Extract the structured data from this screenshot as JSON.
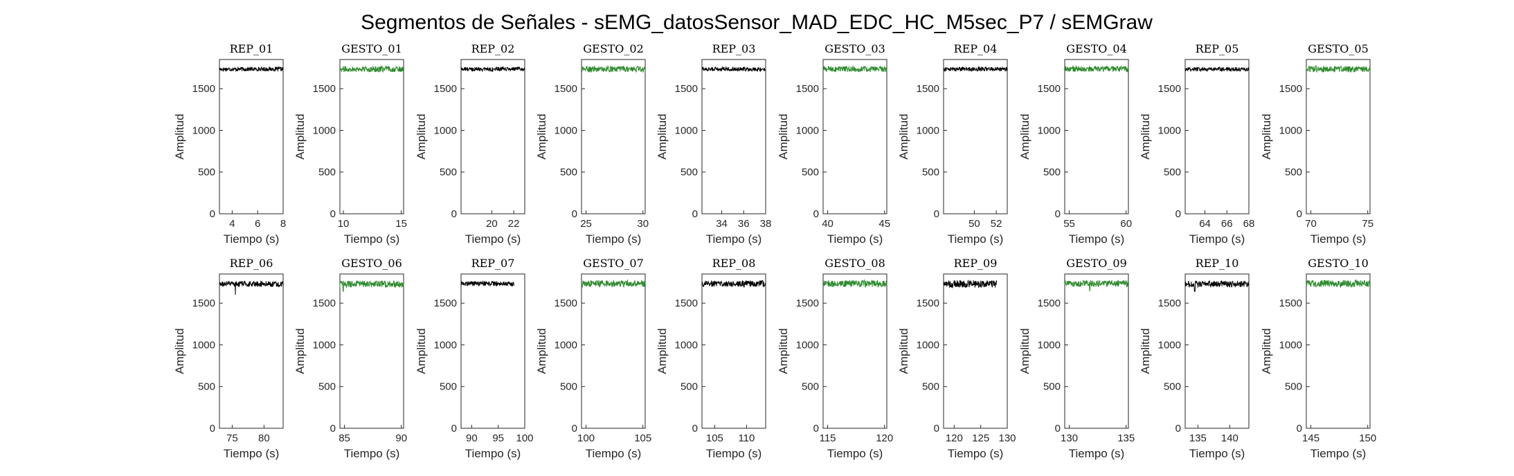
{
  "figure_title": "Segmentos de Señales - sEMG_datosSensor_MAD_EDC_HC_M5sec_P7 / sEMGraw",
  "colors": {
    "rep": "#000000",
    "gesto": "#2E8B2E",
    "axis": "#262626"
  },
  "chart_data": [
    {
      "type": "line",
      "title": "REP_01",
      "xlabel": "Tiempo (s)",
      "ylabel": "Amplitud",
      "xlim": [
        3,
        8
      ],
      "ylim": [
        0,
        1850
      ],
      "xticks": [
        4,
        6,
        8
      ],
      "xtick_labels": [
        "4",
        "6",
        "8"
      ],
      "yticks": [
        0,
        500,
        1000,
        1500
      ],
      "ytick_labels": [
        "0",
        "500",
        "1000",
        "1500"
      ],
      "series": [
        {
          "color": "#000000",
          "x_range": [
            3,
            8
          ],
          "mean": 1735,
          "amplitude": 25
        }
      ]
    },
    {
      "type": "line",
      "title": "GESTO_01",
      "xlabel": "Tiempo (s)",
      "ylabel": "Amplitud",
      "xlim": [
        9.7,
        15.2
      ],
      "ylim": [
        0,
        1850
      ],
      "xticks": [
        10,
        15
      ],
      "xtick_labels": [
        "10",
        "15"
      ],
      "yticks": [
        0,
        500,
        1000,
        1500
      ],
      "ytick_labels": [
        "0",
        "500",
        "1000",
        "1500"
      ],
      "series": [
        {
          "color": "#2E8B2E",
          "x_range": [
            9.7,
            15.2
          ],
          "mean": 1735,
          "amplitude": 35
        }
      ]
    },
    {
      "type": "line",
      "title": "REP_02",
      "xlabel": "Tiempo (s)",
      "ylabel": "Amplitud",
      "xlim": [
        17.2,
        23
      ],
      "ylim": [
        0,
        1850
      ],
      "xticks": [
        20,
        22
      ],
      "xtick_labels": [
        "20",
        "22"
      ],
      "yticks": [
        0,
        500,
        1000,
        1500
      ],
      "ytick_labels": [
        "0",
        "500",
        "1000",
        "1500"
      ],
      "series": [
        {
          "color": "#000000",
          "x_range": [
            17.2,
            23
          ],
          "mean": 1735,
          "amplitude": 25
        }
      ]
    },
    {
      "type": "line",
      "title": "GESTO_02",
      "xlabel": "Tiempo (s)",
      "ylabel": "Amplitud",
      "xlim": [
        24.6,
        30.2
      ],
      "ylim": [
        0,
        1850
      ],
      "xticks": [
        25,
        30
      ],
      "xtick_labels": [
        "25",
        "30"
      ],
      "yticks": [
        0,
        500,
        1000,
        1500
      ],
      "ytick_labels": [
        "0",
        "500",
        "1000",
        "1500"
      ],
      "series": [
        {
          "color": "#2E8B2E",
          "x_range": [
            24.6,
            30.2
          ],
          "mean": 1735,
          "amplitude": 35
        }
      ]
    },
    {
      "type": "line",
      "title": "REP_03",
      "xlabel": "Tiempo (s)",
      "ylabel": "Amplitud",
      "xlim": [
        32.2,
        38
      ],
      "ylim": [
        0,
        1850
      ],
      "xticks": [
        34,
        36,
        38
      ],
      "xtick_labels": [
        "34",
        "36",
        "38"
      ],
      "yticks": [
        0,
        500,
        1000,
        1500
      ],
      "ytick_labels": [
        "0",
        "500",
        "1000",
        "1500"
      ],
      "series": [
        {
          "color": "#000000",
          "x_range": [
            32.2,
            38
          ],
          "mean": 1735,
          "amplitude": 25
        }
      ]
    },
    {
      "type": "line",
      "title": "GESTO_03",
      "xlabel": "Tiempo (s)",
      "ylabel": "Amplitud",
      "xlim": [
        39.6,
        45.2
      ],
      "ylim": [
        0,
        1850
      ],
      "xticks": [
        40,
        45
      ],
      "xtick_labels": [
        "40",
        "45"
      ],
      "yticks": [
        0,
        500,
        1000,
        1500
      ],
      "ytick_labels": [
        "0",
        "500",
        "1000",
        "1500"
      ],
      "series": [
        {
          "color": "#2E8B2E",
          "x_range": [
            39.6,
            45.2
          ],
          "mean": 1735,
          "amplitude": 35
        }
      ]
    },
    {
      "type": "line",
      "title": "REP_04",
      "xlabel": "Tiempo (s)",
      "ylabel": "Amplitud",
      "xlim": [
        47.2,
        53
      ],
      "ylim": [
        0,
        1850
      ],
      "xticks": [
        50,
        52
      ],
      "xtick_labels": [
        "50",
        "52"
      ],
      "yticks": [
        0,
        500,
        1000,
        1500
      ],
      "ytick_labels": [
        "0",
        "500",
        "1000",
        "1500"
      ],
      "series": [
        {
          "color": "#000000",
          "x_range": [
            47.2,
            53
          ],
          "mean": 1735,
          "amplitude": 25
        }
      ]
    },
    {
      "type": "line",
      "title": "GESTO_04",
      "xlabel": "Tiempo (s)",
      "ylabel": "Amplitud",
      "xlim": [
        54.6,
        60.2
      ],
      "ylim": [
        0,
        1850
      ],
      "xticks": [
        55,
        60
      ],
      "xtick_labels": [
        "55",
        "60"
      ],
      "yticks": [
        0,
        500,
        1000,
        1500
      ],
      "ytick_labels": [
        "0",
        "500",
        "1000",
        "1500"
      ],
      "series": [
        {
          "color": "#2E8B2E",
          "x_range": [
            54.6,
            60.2
          ],
          "mean": 1735,
          "amplitude": 35
        }
      ]
    },
    {
      "type": "line",
      "title": "REP_05",
      "xlabel": "Tiempo (s)",
      "ylabel": "Amplitud",
      "xlim": [
        62.2,
        68
      ],
      "ylim": [
        0,
        1850
      ],
      "xticks": [
        64,
        66,
        68
      ],
      "xtick_labels": [
        "64",
        "66",
        "68"
      ],
      "yticks": [
        0,
        500,
        1000,
        1500
      ],
      "ytick_labels": [
        "0",
        "500",
        "1000",
        "1500"
      ],
      "series": [
        {
          "color": "#000000",
          "x_range": [
            62.2,
            68
          ],
          "mean": 1735,
          "amplitude": 25
        }
      ]
    },
    {
      "type": "line",
      "title": "GESTO_05",
      "xlabel": "Tiempo (s)",
      "ylabel": "Amplitud",
      "xlim": [
        69.6,
        75.2
      ],
      "ylim": [
        0,
        1850
      ],
      "xticks": [
        70,
        75
      ],
      "xtick_labels": [
        "70",
        "75"
      ],
      "yticks": [
        0,
        500,
        1000,
        1500
      ],
      "ytick_labels": [
        "0",
        "500",
        "1000",
        "1500"
      ],
      "series": [
        {
          "color": "#2E8B2E",
          "x_range": [
            69.6,
            75.2
          ],
          "mean": 1735,
          "amplitude": 35
        }
      ]
    },
    {
      "type": "line",
      "title": "REP_06",
      "xlabel": "Tiempo (s)",
      "ylabel": "Amplitud",
      "xlim": [
        73,
        83
      ],
      "ylim": [
        0,
        1850
      ],
      "xticks": [
        75,
        80
      ],
      "xtick_labels": [
        "75",
        "80"
      ],
      "yticks": [
        0,
        500,
        1000,
        1500
      ],
      "ytick_labels": [
        "0",
        "500",
        "1000",
        "1500"
      ],
      "series": [
        {
          "color": "#000000",
          "x_range": [
            73,
            83
          ],
          "mean": 1730,
          "amplitude": 35,
          "dip": {
            "x": 75.5,
            "y": 1600
          }
        }
      ]
    },
    {
      "type": "line",
      "title": "GESTO_06",
      "xlabel": "Tiempo (s)",
      "ylabel": "Amplitud",
      "xlim": [
        84.6,
        90.2
      ],
      "ylim": [
        0,
        1850
      ],
      "xticks": [
        85,
        90
      ],
      "xtick_labels": [
        "85",
        "90"
      ],
      "yticks": [
        0,
        500,
        1000,
        1500
      ],
      "ytick_labels": [
        "0",
        "500",
        "1000",
        "1500"
      ],
      "series": [
        {
          "color": "#2E8B2E",
          "x_range": [
            84.6,
            90.2
          ],
          "mean": 1730,
          "amplitude": 40,
          "dip": {
            "x": 84.9,
            "y": 1640
          }
        }
      ]
    },
    {
      "type": "line",
      "title": "REP_07",
      "xlabel": "Tiempo (s)",
      "ylabel": "Amplitud",
      "xlim": [
        88,
        100
      ],
      "ylim": [
        0,
        1850
      ],
      "xticks": [
        90,
        95,
        100
      ],
      "xtick_labels": [
        "90",
        "95",
        "100"
      ],
      "yticks": [
        0,
        500,
        1000,
        1500
      ],
      "ytick_labels": [
        "0",
        "500",
        "1000",
        "1500"
      ],
      "series": [
        {
          "color": "#000000",
          "x_range": [
            88,
            98
          ],
          "mean": 1735,
          "amplitude": 28
        }
      ]
    },
    {
      "type": "line",
      "title": "GESTO_07",
      "xlabel": "Tiempo (s)",
      "ylabel": "Amplitud",
      "xlim": [
        99.6,
        105.2
      ],
      "ylim": [
        0,
        1850
      ],
      "xticks": [
        100,
        105
      ],
      "xtick_labels": [
        "100",
        "105"
      ],
      "yticks": [
        0,
        500,
        1000,
        1500
      ],
      "ytick_labels": [
        "0",
        "500",
        "1000",
        "1500"
      ],
      "series": [
        {
          "color": "#2E8B2E",
          "x_range": [
            99.6,
            105.2
          ],
          "mean": 1735,
          "amplitude": 40
        }
      ]
    },
    {
      "type": "line",
      "title": "REP_08",
      "xlabel": "Tiempo (s)",
      "ylabel": "Amplitud",
      "xlim": [
        103,
        113
      ],
      "ylim": [
        0,
        1850
      ],
      "xticks": [
        105,
        110
      ],
      "xtick_labels": [
        "105",
        "110"
      ],
      "yticks": [
        0,
        500,
        1000,
        1500
      ],
      "ytick_labels": [
        "0",
        "500",
        "1000",
        "1500"
      ],
      "series": [
        {
          "color": "#000000",
          "x_range": [
            103,
            113
          ],
          "mean": 1735,
          "amplitude": 38
        }
      ]
    },
    {
      "type": "line",
      "title": "GESTO_08",
      "xlabel": "Tiempo (s)",
      "ylabel": "Amplitud",
      "xlim": [
        114.6,
        120.2
      ],
      "ylim": [
        0,
        1850
      ],
      "xticks": [
        115,
        120
      ],
      "xtick_labels": [
        "115",
        "120"
      ],
      "yticks": [
        0,
        500,
        1000,
        1500
      ],
      "ytick_labels": [
        "0",
        "500",
        "1000",
        "1500"
      ],
      "series": [
        {
          "color": "#2E8B2E",
          "x_range": [
            114.6,
            120.2
          ],
          "mean": 1735,
          "amplitude": 42
        }
      ]
    },
    {
      "type": "line",
      "title": "REP_09",
      "xlabel": "Tiempo (s)",
      "ylabel": "Amplitud",
      "xlim": [
        118,
        130
      ],
      "ylim": [
        0,
        1850
      ],
      "xticks": [
        120,
        125,
        130
      ],
      "xtick_labels": [
        "120",
        "125",
        "130"
      ],
      "yticks": [
        0,
        500,
        1000,
        1500
      ],
      "ytick_labels": [
        "0",
        "500",
        "1000",
        "1500"
      ],
      "series": [
        {
          "color": "#000000",
          "x_range": [
            118,
            128
          ],
          "mean": 1730,
          "amplitude": 45
        }
      ]
    },
    {
      "type": "line",
      "title": "GESTO_09",
      "xlabel": "Tiempo (s)",
      "ylabel": "Amplitud",
      "xlim": [
        129.6,
        135.2
      ],
      "ylim": [
        0,
        1850
      ],
      "xticks": [
        130,
        135
      ],
      "xtick_labels": [
        "130",
        "135"
      ],
      "yticks": [
        0,
        500,
        1000,
        1500
      ],
      "ytick_labels": [
        "0",
        "500",
        "1000",
        "1500"
      ],
      "series": [
        {
          "color": "#2E8B2E",
          "x_range": [
            129.6,
            135.2
          ],
          "mean": 1735,
          "amplitude": 40,
          "dip": {
            "x": 131.8,
            "y": 1650
          }
        }
      ]
    },
    {
      "type": "line",
      "title": "REP_10",
      "xlabel": "Tiempo (s)",
      "ylabel": "Amplitud",
      "xlim": [
        133,
        143
      ],
      "ylim": [
        0,
        1850
      ],
      "xticks": [
        135,
        140
      ],
      "xtick_labels": [
        "135",
        "140"
      ],
      "yticks": [
        0,
        500,
        1000,
        1500
      ],
      "ytick_labels": [
        "0",
        "500",
        "1000",
        "1500"
      ],
      "series": [
        {
          "color": "#000000",
          "x_range": [
            133,
            143
          ],
          "mean": 1730,
          "amplitude": 38,
          "dip": {
            "x": 134.5,
            "y": 1640
          }
        }
      ]
    },
    {
      "type": "line",
      "title": "GESTO_10",
      "xlabel": "Tiempo (s)",
      "ylabel": "Amplitud",
      "xlim": [
        144.6,
        150.2
      ],
      "ylim": [
        0,
        1850
      ],
      "xticks": [
        145,
        150
      ],
      "xtick_labels": [
        "145",
        "150"
      ],
      "yticks": [
        0,
        500,
        1000,
        1500
      ],
      "ytick_labels": [
        "0",
        "500",
        "1000",
        "1500"
      ],
      "series": [
        {
          "color": "#2E8B2E",
          "x_range": [
            144.6,
            150.2
          ],
          "mean": 1735,
          "amplitude": 42
        }
      ]
    }
  ]
}
